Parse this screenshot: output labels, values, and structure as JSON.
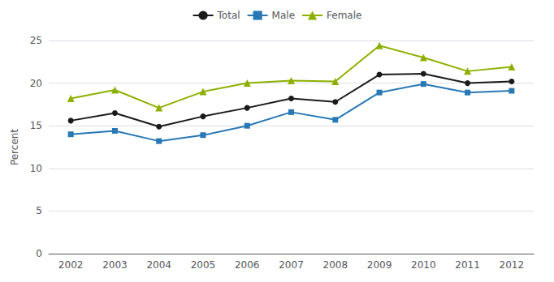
{
  "chart_data": {
    "type": "line",
    "categories": [
      "2002",
      "2003",
      "2004",
      "2005",
      "2006",
      "2007",
      "2008",
      "2009",
      "2010",
      "2011",
      "2012"
    ],
    "series": [
      {
        "name": "Total",
        "color": "#1a1a1a",
        "marker": "circle",
        "values": [
          15.6,
          16.5,
          14.9,
          16.1,
          17.1,
          18.2,
          17.8,
          21.0,
          21.1,
          20.0,
          20.2
        ]
      },
      {
        "name": "Male",
        "color": "#2878b5",
        "marker": "square",
        "values": [
          14.0,
          14.4,
          13.2,
          13.9,
          15.0,
          16.6,
          15.7,
          18.9,
          19.9,
          18.9,
          19.1
        ]
      },
      {
        "name": "Female",
        "color": "#8db000",
        "marker": "triangle",
        "values": [
          18.2,
          19.2,
          17.1,
          19.0,
          20.0,
          20.3,
          20.2,
          24.4,
          23.0,
          21.4,
          21.9
        ]
      }
    ],
    "ylabel": "Percent",
    "ylim": [
      0,
      25
    ],
    "yticks": [
      0,
      5,
      10,
      15,
      20,
      25
    ],
    "grid": true,
    "legend": "top"
  }
}
